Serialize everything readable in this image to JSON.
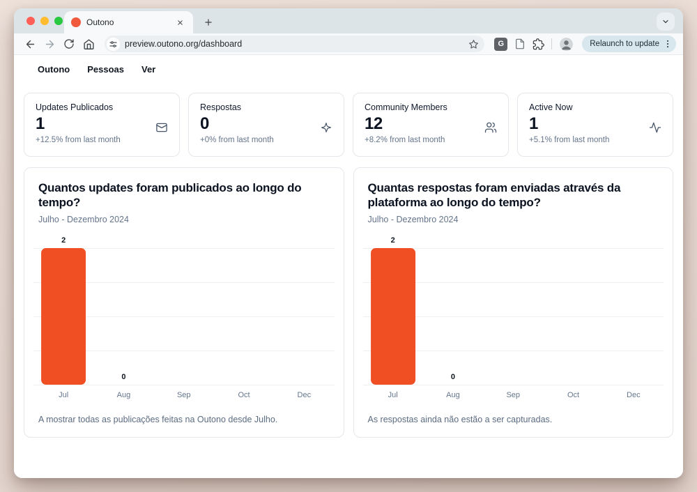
{
  "browser": {
    "tab_title": "Outono",
    "url": "preview.outono.org/dashboard",
    "relaunch_label": "Relaunch to update"
  },
  "nav": {
    "items": [
      {
        "label": "Outono"
      },
      {
        "label": "Pessoas"
      },
      {
        "label": "Ver"
      }
    ]
  },
  "stats": [
    {
      "title": "Updates Publicados",
      "value": "1",
      "delta": "+12.5% from last month",
      "icon": "mail-icon"
    },
    {
      "title": "Respostas",
      "value": "0",
      "delta": "+0% from last month",
      "icon": "sparkle-icon"
    },
    {
      "title": "Community Members",
      "value": "12",
      "delta": "+8.2% from last month",
      "icon": "users-icon"
    },
    {
      "title": "Active Now",
      "value": "1",
      "delta": "+5.1% from last month",
      "icon": "activity-icon"
    }
  ],
  "charts": [
    {
      "title": "Quantos updates foram publicados ao longo do tempo?",
      "subtitle": "Julho - Dezembro 2024",
      "footer": "A mostrar todas as publicações feitas na Outono desde Julho."
    },
    {
      "title": "Quantas respostas foram enviadas através da plataforma ao longo do tempo?",
      "subtitle": "Julho - Dezembro 2024",
      "footer": "As respostas ainda não estão a ser capturadas."
    }
  ],
  "chart_data": [
    {
      "type": "bar",
      "title": "Quantos updates foram publicados ao longo do tempo?",
      "categories": [
        "Jul",
        "Aug",
        "Sep",
        "Oct",
        "Dec"
      ],
      "values": [
        2,
        0,
        null,
        null,
        null
      ],
      "ylim": [
        0,
        2
      ],
      "gridlines": 5,
      "bar_color": "#f04e23",
      "data_labels": true,
      "legend": false,
      "xlabel": "",
      "ylabel": ""
    },
    {
      "type": "bar",
      "title": "Quantas respostas foram enviadas através da plataforma ao longo do tempo?",
      "categories": [
        "Jul",
        "Aug",
        "Sep",
        "Oct",
        "Dec"
      ],
      "values": [
        2,
        0,
        null,
        null,
        null
      ],
      "ylim": [
        0,
        2
      ],
      "gridlines": 5,
      "bar_color": "#f04e23",
      "data_labels": true,
      "legend": false,
      "xlabel": "",
      "ylabel": ""
    }
  ],
  "colors": {
    "accent": "#f04e23",
    "favicon": "#f25a3d",
    "tabstrip_bg": "#dce4e8",
    "toolbar_bg": "#f7f9fa",
    "relaunch_pill": "#d8e6ee",
    "muted_text": "#64748b"
  }
}
